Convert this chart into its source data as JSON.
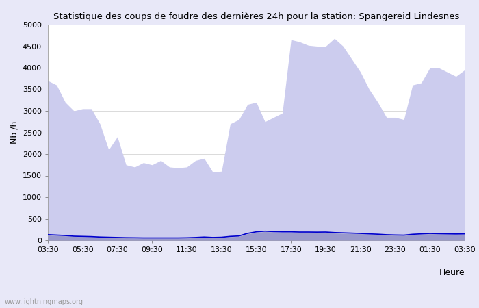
{
  "title": "Statistique des coups de foudre des dernières 24h pour la station: Spangereid Lindesnes",
  "ylabel": "Nb /h",
  "xlabel": "Heure",
  "watermark": "www.lightningmaps.org",
  "ylim": [
    0,
    5000
  ],
  "yticks": [
    0,
    500,
    1000,
    1500,
    2000,
    2500,
    3000,
    3500,
    4000,
    4500,
    5000
  ],
  "xtick_labels": [
    "03:30",
    "05:30",
    "07:30",
    "09:30",
    "11:30",
    "13:30",
    "15:30",
    "17:30",
    "19:30",
    "21:30",
    "23:30",
    "01:30",
    "03:30"
  ],
  "bg_color": "#e8e8f8",
  "plot_bg_color": "#ffffff",
  "total_foudre_color": "#ccccee",
  "detected_color": "#9999cc",
  "moyenne_color": "#0000cc",
  "legend_total_color": "#ccccee",
  "legend_detected_color": "#9999cc",
  "grid_color": "#cccccc",
  "time_points": [
    0,
    1,
    2,
    3,
    4,
    5,
    6,
    7,
    8,
    9,
    10,
    11,
    12,
    13,
    14,
    15,
    16,
    17,
    18,
    19,
    20,
    21,
    22,
    23,
    24,
    25,
    26,
    27,
    28,
    29,
    30,
    31,
    32,
    33,
    34,
    35,
    36,
    37,
    38,
    39,
    40,
    41,
    42,
    43,
    44,
    45,
    46,
    47,
    48
  ],
  "total_foudre_values": [
    3700,
    3600,
    3200,
    3000,
    3050,
    3050,
    2700,
    2100,
    2400,
    1750,
    1700,
    1800,
    1750,
    1850,
    1700,
    1680,
    1700,
    1850,
    1900,
    1580,
    1600,
    2700,
    2800,
    3150,
    3200,
    2750,
    2850,
    2950,
    4650,
    4600,
    4520,
    4500,
    4500,
    4680,
    4500,
    4200,
    3900,
    3500,
    3200,
    2850,
    2850,
    2800,
    3600,
    3650,
    4000,
    4000,
    3900,
    3800,
    3950
  ],
  "detected_values": [
    120,
    110,
    100,
    90,
    80,
    80,
    70,
    60,
    60,
    55,
    50,
    50,
    50,
    50,
    50,
    50,
    50,
    60,
    70,
    60,
    60,
    80,
    90,
    150,
    180,
    200,
    190,
    180,
    180,
    175,
    180,
    175,
    180,
    165,
    160,
    155,
    150,
    140,
    130,
    120,
    115,
    110,
    130,
    140,
    150,
    145,
    140,
    138,
    140
  ],
  "moyenne_values": [
    130,
    120,
    110,
    95,
    90,
    85,
    75,
    70,
    65,
    60,
    58,
    55,
    55,
    55,
    55,
    55,
    58,
    65,
    75,
    65,
    70,
    90,
    100,
    160,
    195,
    210,
    200,
    195,
    195,
    190,
    190,
    188,
    190,
    178,
    172,
    165,
    158,
    148,
    140,
    128,
    122,
    118,
    138,
    148,
    158,
    152,
    148,
    145,
    148
  ]
}
